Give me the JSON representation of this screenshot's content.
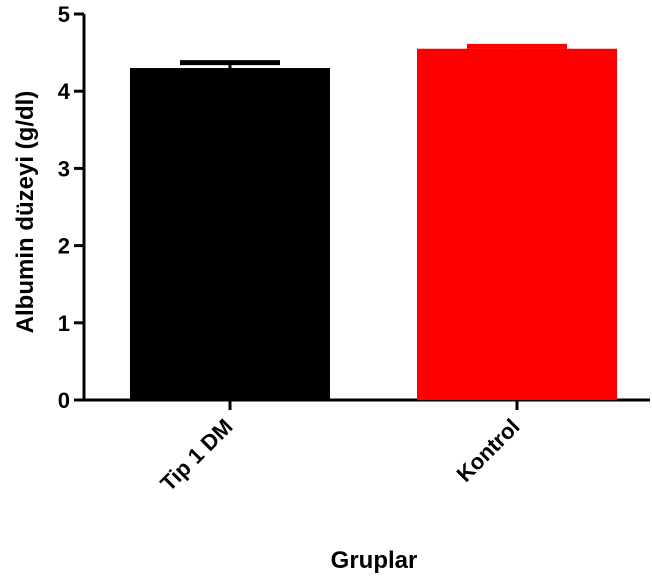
{
  "chart_data": {
    "type": "bar",
    "categories": [
      "Tip 1 DM",
      "Kontrol"
    ],
    "values": [
      4.3,
      4.55
    ],
    "error_upper": [
      4.37,
      4.58
    ],
    "colors": [
      "#000000",
      "#ff0000"
    ],
    "xlabel": "Gruplar",
    "ylabel": "Albumin düzeyi (g/dl)",
    "ylim": [
      0,
      5
    ],
    "yticks": [
      "0",
      "1",
      "2",
      "3",
      "4",
      "5"
    ],
    "grid": false
  }
}
